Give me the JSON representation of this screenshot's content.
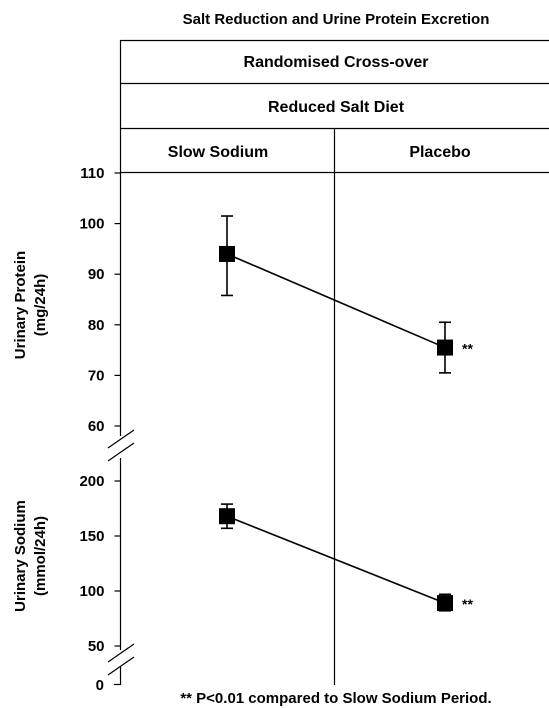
{
  "chart_data": {
    "type": "line",
    "title": "Salt Reduction and Urine Protein Excretion",
    "header": {
      "row1": "Randomised Cross-over",
      "row2": "Reduced Salt Diet",
      "columns": [
        "Slow Sodium",
        "Placebo"
      ]
    },
    "categories": [
      "Slow Sodium",
      "Placebo"
    ],
    "panels": [
      {
        "name": "protein",
        "ylabel_line1": "Urinary Protein",
        "ylabel_line2": "(mg/24h)",
        "ylim": [
          60,
          110
        ],
        "yticks": [
          60,
          70,
          80,
          90,
          100,
          110
        ],
        "axis_break_below": true,
        "values": [
          94,
          75.5
        ],
        "error_low": [
          85.8,
          70.5
        ],
        "error_high": [
          101.5,
          80.5
        ],
        "annotations": [
          "",
          "**"
        ]
      },
      {
        "name": "sodium",
        "ylabel_line1": "Urinary Sodium",
        "ylabel_line2": "(mmol/24h)",
        "ylim": [
          50,
          200
        ],
        "yticks": [
          50,
          100,
          150,
          200
        ],
        "axis_break_below": true,
        "values": [
          168,
          89
        ],
        "error_low": [
          157,
          82
        ],
        "error_high": [
          179,
          97
        ],
        "annotations": [
          "",
          "**"
        ]
      }
    ],
    "zero_tick": "0",
    "footnote": "** P<0.01 compared to Slow Sodium Period."
  },
  "colors": {
    "line": "#000000",
    "background": "#ffffff"
  }
}
